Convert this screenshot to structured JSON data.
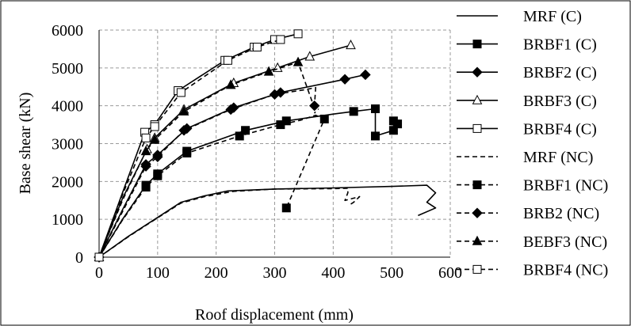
{
  "chart_data": {
    "type": "line",
    "title": "",
    "xlabel": "Roof displacement (mm)",
    "ylabel": "Base shear (kN)",
    "xlim": [
      0,
      600
    ],
    "ylim": [
      0,
      6000
    ],
    "x_ticks": [
      "0",
      "100",
      "200",
      "300",
      "400",
      "500",
      "600"
    ],
    "y_ticks": [
      "0",
      "1000",
      "2000",
      "3000",
      "4000",
      "5000",
      "6000"
    ],
    "grid": true,
    "legend_position": "right",
    "series": [
      {
        "name": "MRF (C)",
        "dash": "solid",
        "marker": "none",
        "color": "#000000",
        "x": [
          0,
          50,
          100,
          140,
          180,
          220,
          300,
          400,
          500,
          560,
          575,
          560,
          575,
          545
        ],
        "y": [
          0,
          550,
          1050,
          1450,
          1620,
          1750,
          1800,
          1830,
          1870,
          1900,
          1700,
          1450,
          1300,
          1100
        ]
      },
      {
        "name": "BRBF1 (C)",
        "dash": "solid",
        "marker": "square-filled",
        "color": "#000000",
        "x": [
          0,
          40,
          80,
          100,
          150,
          250,
          320,
          400,
          435,
          472,
          472,
          503,
          503,
          510
        ],
        "y": [
          0,
          1000,
          1900,
          2200,
          2800,
          3350,
          3600,
          3780,
          3850,
          3920,
          3200,
          3350,
          3600,
          3520
        ]
      },
      {
        "name": "BRBF2 (C)",
        "dash": "solid",
        "marker": "diamond-filled",
        "color": "#000000",
        "x": [
          0,
          40,
          80,
          100,
          150,
          230,
          310,
          420,
          455
        ],
        "y": [
          0,
          1250,
          2450,
          2700,
          3400,
          3950,
          4350,
          4700,
          4820
        ]
      },
      {
        "name": "BRBF3 (C)",
        "dash": "solid",
        "marker": "triangle-open",
        "color": "#000000",
        "x": [
          0,
          40,
          82,
          95,
          145,
          230,
          305,
          360,
          430
        ],
        "y": [
          0,
          1550,
          2850,
          3150,
          3900,
          4600,
          5000,
          5300,
          5600
        ]
      },
      {
        "name": "BRBF4 (C)",
        "dash": "solid",
        "marker": "square-open",
        "color": "#000000",
        "x": [
          0,
          40,
          78,
          95,
          135,
          215,
          265,
          300,
          340
        ],
        "y": [
          0,
          1700,
          3300,
          3500,
          4400,
          5200,
          5550,
          5750,
          5900
        ]
      },
      {
        "name": "MRF (NC)",
        "dash": "dashed",
        "marker": "none",
        "color": "#000000",
        "x": [
          0,
          50,
          100,
          140,
          180,
          230,
          300,
          400,
          425,
          425,
          420,
          445,
          435,
          430
        ],
        "y": [
          0,
          540,
          1040,
          1430,
          1600,
          1740,
          1800,
          1810,
          1820,
          1700,
          1500,
          1600,
          1450,
          1400
        ]
      },
      {
        "name": "BRBF1 (NC)",
        "dash": "dashed",
        "marker": "square-filled",
        "color": "#000000",
        "x": [
          0,
          40,
          80,
          100,
          150,
          240,
          310,
          345,
          370,
          385,
          320
        ],
        "y": [
          0,
          980,
          1850,
          2150,
          2750,
          3200,
          3500,
          3620,
          3750,
          3650,
          1300
        ]
      },
      {
        "name": "BRB2 (NC)",
        "dash": "dashed",
        "marker": "diamond-filled",
        "color": "#000000",
        "x": [
          0,
          40,
          80,
          100,
          145,
          225,
          300,
          350,
          370,
          368,
          375
        ],
        "y": [
          0,
          1200,
          2400,
          2650,
          3350,
          3900,
          4300,
          4420,
          4480,
          4000,
          3900
        ]
      },
      {
        "name": "BEBF3 (NC)",
        "dash": "dashed",
        "marker": "triangle-filled",
        "color": "#000000",
        "x": [
          0,
          40,
          80,
          95,
          145,
          225,
          290,
          340,
          370,
          368
        ],
        "y": [
          0,
          1500,
          2800,
          3100,
          3850,
          4550,
          4900,
          5150,
          3850,
          3800
        ]
      },
      {
        "name": "BRBF4 (NC)",
        "dash": "dashed",
        "marker": "square-open",
        "color": "#000000",
        "x": [
          0,
          40,
          80,
          95,
          140,
          220,
          270,
          310
        ],
        "y": [
          0,
          1650,
          3150,
          3450,
          4350,
          5200,
          5550,
          5750
        ]
      }
    ],
    "markers_x": {
      "BRBF1 (C)": [
        0,
        80,
        100,
        150,
        250,
        320,
        435,
        472,
        472,
        503,
        503,
        510
      ],
      "BRBF2 (C)": [
        0,
        80,
        100,
        150,
        230,
        310,
        420,
        455
      ],
      "BRBF3 (C)": [
        0,
        82,
        95,
        145,
        230,
        305,
        360,
        430
      ],
      "BRBF4 (C)": [
        0,
        78,
        95,
        135,
        215,
        265,
        300,
        340
      ],
      "BRBF1 (NC)": [
        0,
        80,
        100,
        150,
        240,
        310,
        385,
        320
      ],
      "BRB2 (NC)": [
        0,
        80,
        100,
        145,
        225,
        300,
        368
      ],
      "BEBF3 (NC)": [
        0,
        80,
        95,
        145,
        225,
        290,
        340
      ],
      "BRBF4 (NC)": [
        0,
        80,
        95,
        140,
        220,
        270,
        310
      ]
    },
    "markers_y": {
      "BRBF1 (C)": [
        0,
        1900,
        2200,
        2800,
        3350,
        3600,
        3850,
        3920,
        3200,
        3350,
        3600,
        3520
      ],
      "BRBF2 (C)": [
        0,
        2450,
        2700,
        3400,
        3950,
        4350,
        4700,
        4820
      ],
      "BRBF3 (C)": [
        0,
        2850,
        3150,
        3900,
        4600,
        5000,
        5300,
        5600
      ],
      "BRBF4 (C)": [
        0,
        3300,
        3500,
        4400,
        5200,
        5550,
        5750,
        5900
      ],
      "BRBF1 (NC)": [
        0,
        1850,
        2150,
        2750,
        3200,
        3500,
        3650,
        1300
      ],
      "BRB2 (NC)": [
        0,
        2400,
        2650,
        3350,
        3900,
        4300,
        4000
      ],
      "BEBF3 (NC)": [
        0,
        2800,
        3100,
        3850,
        4550,
        4900,
        5150
      ],
      "BRBF4 (NC)": [
        0,
        3150,
        3450,
        4350,
        5200,
        5550,
        5750
      ]
    }
  }
}
